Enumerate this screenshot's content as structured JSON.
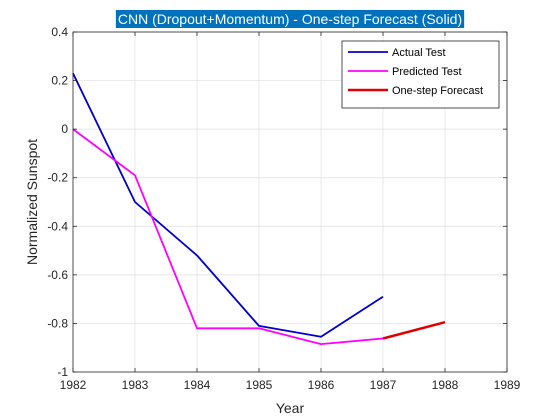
{
  "chart_data": {
    "type": "line",
    "title": "CNN (Dropout+Momentum) - One-step Forecast (Solid)",
    "xlabel": "Year",
    "ylabel": "Normalized Sunspot",
    "xlim": [
      1982,
      1989
    ],
    "ylim": [
      -1,
      0.4
    ],
    "xticks": [
      1982,
      1983,
      1984,
      1985,
      1986,
      1987,
      1988,
      1989
    ],
    "yticks": [
      -1,
      -0.8,
      -0.6,
      -0.4,
      -0.2,
      0,
      0.2,
      0.4
    ],
    "ytick_labels": [
      "-1",
      "-0.8",
      "-0.6",
      "-0.4",
      "-0.2",
      "0",
      "0.2",
      "0.4"
    ],
    "grid": true,
    "legend_position": "top-right",
    "title_background": "#0072BD",
    "series": [
      {
        "name": "Actual Test",
        "color": "#0000CC",
        "x": [
          1982,
          1983,
          1984,
          1985,
          1986,
          1987
        ],
        "y": [
          0.23,
          -0.3,
          -0.52,
          -0.81,
          -0.855,
          -0.69
        ]
      },
      {
        "name": "Predicted Test",
        "color": "#FF00FF",
        "x": [
          1982,
          1983,
          1984,
          1985,
          1986,
          1987
        ],
        "y": [
          0.0,
          -0.19,
          -0.82,
          -0.82,
          -0.885,
          -0.862
        ]
      },
      {
        "name": "One-step Forecast",
        "color": "#E00000",
        "x": [
          1987,
          1988
        ],
        "y": [
          -0.862,
          -0.795
        ]
      }
    ]
  }
}
